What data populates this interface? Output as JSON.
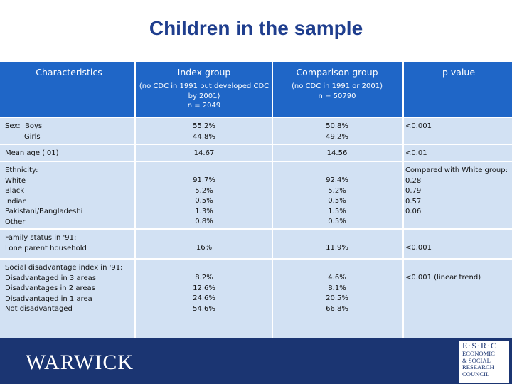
{
  "title": "Children in the sample",
  "header": {
    "characteristics": "Characteristics",
    "index_main": "Index group",
    "index_sub1": "(no CDC in 1991 but developed CDC",
    "index_sub2": "by 2001)",
    "index_sub3": "n = 2049",
    "comparison_main": "Comparison group",
    "comparison_sub1": "(no CDC in 1991 or 2001)",
    "comparison_sub2": "n = 50790",
    "pvalue": "p value"
  },
  "rows": {
    "sex": {
      "label1": "Sex:  Boys",
      "label2": "Girls",
      "index": [
        "55.2%",
        "44.8%"
      ],
      "comparison": [
        "50.8%",
        "49.2%"
      ],
      "p": "<0.001"
    },
    "age": {
      "label": "Mean age ('01)",
      "index": "14.67",
      "comparison": "14.56",
      "p": "<0.01"
    },
    "ethnicity": {
      "labels": [
        "Ethnicity:",
        "White",
        "Black",
        "Indian",
        "Pakistani/Bangladeshi",
        "Other"
      ],
      "index": [
        "91.7%",
        "5.2%",
        "0.5%",
        "1.3%",
        "0.8%"
      ],
      "comparison": [
        "92.4%",
        "5.2%",
        "0.5%",
        "1.5%",
        "0.5%"
      ],
      "p": [
        "Compared with White group:",
        "0.28",
        "0.79",
        "0.57",
        "0.06"
      ]
    },
    "family": {
      "labels": [
        "Family status in '91:",
        "Lone parent household"
      ],
      "index": "16%",
      "comparison": "11.9%",
      "p": "<0.001"
    },
    "social": {
      "labels": [
        "Social disadvantage index in '91:",
        "Disadvantaged in 3 areas",
        "Disadvantages in 2 areas",
        "Disadvantaged in 1 area",
        "Not disadvantaged"
      ],
      "index": [
        "8.2%",
        "12.6%",
        "24.6%",
        "54.6%"
      ],
      "comparison": [
        "4.6%",
        "8.1%",
        "20.5%",
        "66.8%"
      ],
      "p": "<0.001 (linear trend)"
    }
  },
  "footer": {
    "warwick": "WARWICK",
    "esrc_top": "E·S·R·C",
    "esrc_lines": [
      "ECONOMIC",
      "& SOCIAL",
      "RESEARCH",
      "COUNCIL"
    ]
  },
  "colors": {
    "title": "#1f3e8e",
    "header_bg": "#1f66c7",
    "row_bg": "#d2e1f3",
    "footer_bg": "#1b3572"
  }
}
